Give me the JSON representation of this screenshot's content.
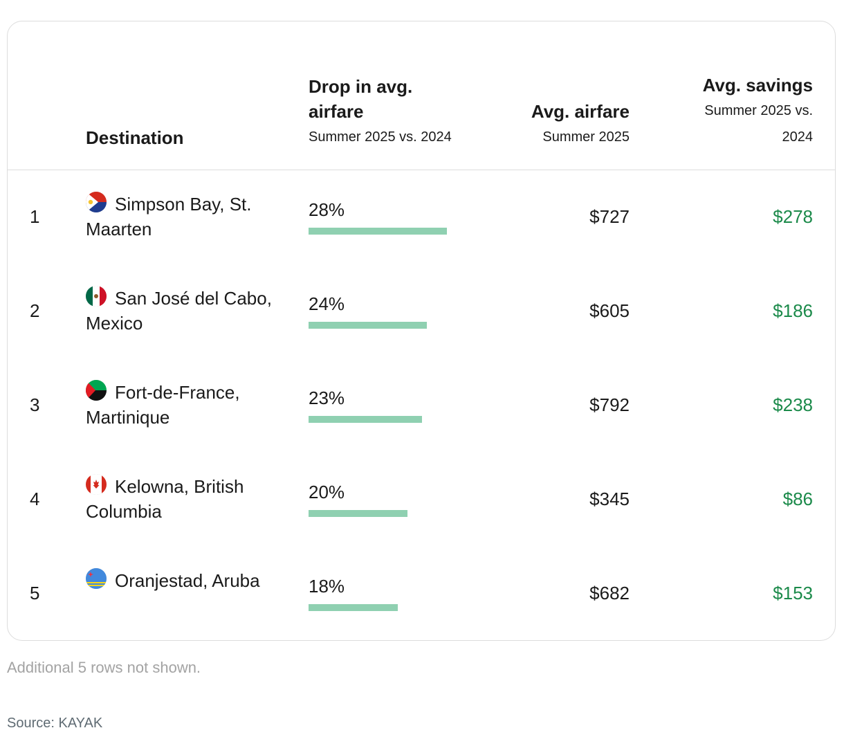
{
  "chart_data": {
    "type": "table",
    "columns": {
      "destination": "Destination",
      "drop_title": "Drop in avg. airfare",
      "drop_sub": "Summer 2025 vs. 2024",
      "airfare_title": "Avg. airfare",
      "airfare_sub": "Summer 2025",
      "savings_title": "Avg. savings",
      "savings_sub": "Summer 2025 vs. 2024"
    },
    "bar_color": "#8fd0b1",
    "savings_color": "#1b8a4a",
    "rows": [
      {
        "rank": "1",
        "destination": "Simpson Bay, St. Maarten",
        "flag": "sint-maarten-flag-icon",
        "drop_pct": 28,
        "drop_label": "28%",
        "airfare": "$727",
        "savings": "$278"
      },
      {
        "rank": "2",
        "destination": "San José del Cabo, Mexico",
        "flag": "mexico-flag-icon",
        "drop_pct": 24,
        "drop_label": "24%",
        "airfare": "$605",
        "savings": "$186"
      },
      {
        "rank": "3",
        "destination": "Fort-de-France, Martinique",
        "flag": "martinique-flag-icon",
        "drop_pct": 23,
        "drop_label": "23%",
        "airfare": "$792",
        "savings": "$238"
      },
      {
        "rank": "4",
        "destination": "Kelowna, British Columbia",
        "flag": "canada-flag-icon",
        "drop_pct": 20,
        "drop_label": "20%",
        "airfare": "$345",
        "savings": "$86"
      },
      {
        "rank": "5",
        "destination": "Oranjestad, Aruba",
        "flag": "aruba-flag-icon",
        "drop_pct": 18,
        "drop_label": "18%",
        "airfare": "$682",
        "savings": "$153"
      }
    ]
  },
  "footnote": "Additional 5 rows not shown.",
  "source": "Source: KAYAK"
}
